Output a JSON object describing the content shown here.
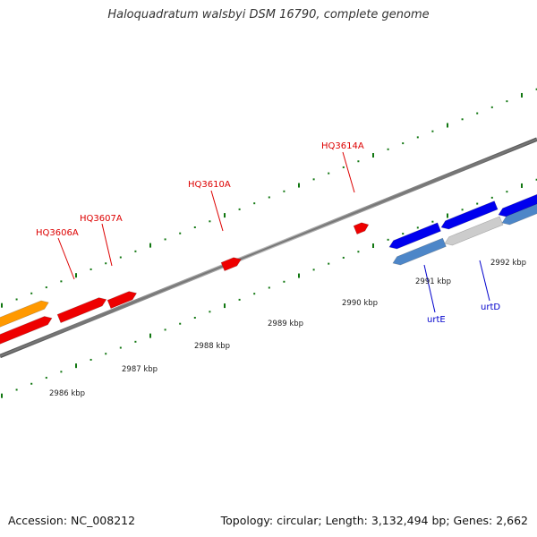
{
  "title": "Haloquadratum walsbyi DSM 16790, complete genome",
  "footer": {
    "accession": "Accession: NC_008212",
    "stats": "Topology: circular; Length: 3,132,494 bp; Genes: 2,662"
  },
  "colors": {
    "backbone": "#777777",
    "tick": "#117711",
    "forward_gene": "#ee0000",
    "forward_gene_alt": "#ff9900",
    "reverse_gene": "#0000ee",
    "reverse_gene_alt": "#4d86c8",
    "pseudo_gene": "#cccccc",
    "locus_label": "#dd0000",
    "gene_label": "#0000cc"
  },
  "scale_labels": [
    "2986 kbp",
    "2987 kbp",
    "2988 kbp",
    "2989 kbp",
    "2990 kbp",
    "2991 kbp",
    "2992 kbp"
  ],
  "locus_tags": [
    "HQ3606A",
    "HQ3607A",
    "HQ3610A",
    "HQ3614A"
  ],
  "gene_names": [
    "urtE",
    "urtD"
  ]
}
